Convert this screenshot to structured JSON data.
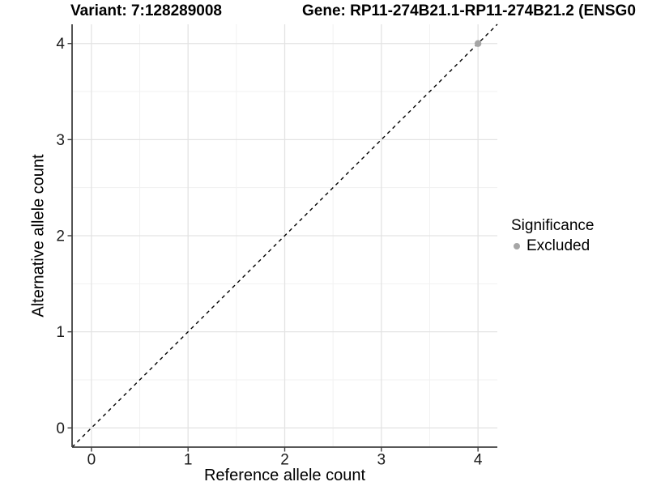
{
  "header": {
    "variant_title": "Variant: 7:128289008",
    "gene_title": "Gene: RP11-274B21.1-RP11-274B21.2 (ENSG0"
  },
  "chart_data": {
    "type": "scatter",
    "xlabel": "Reference allele count",
    "ylabel": "Alternative allele count",
    "xlim": [
      -0.2,
      4.2
    ],
    "ylim": [
      -0.2,
      4.2
    ],
    "xticks": [
      0,
      1,
      2,
      3,
      4
    ],
    "yticks": [
      0,
      1,
      2,
      3,
      4
    ],
    "minor_gridlines": [
      0.5,
      1.5,
      2.5,
      3.5
    ],
    "grid": "on",
    "identity_line": {
      "style": "dashed",
      "color": "#000000",
      "slope": 1,
      "intercept": 0
    },
    "series": [
      {
        "name": "Excluded",
        "color": "#a6a6a6",
        "points": [
          {
            "x": 4,
            "y": 4
          }
        ]
      }
    ],
    "legend": {
      "title": "Significance",
      "position": "right",
      "items": [
        {
          "label": "Excluded",
          "color": "#a6a6a6"
        }
      ]
    }
  },
  "colors": {
    "background": "#ffffff",
    "axis_line": "#404040",
    "major_grid": "#e3e3e3",
    "minor_grid": "#f1f1f1",
    "tick_text": "#1a1a1a",
    "title_text": "#000000"
  }
}
